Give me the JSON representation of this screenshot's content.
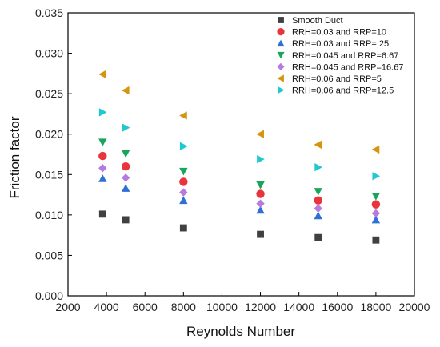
{
  "chart_data": {
    "type": "scatter",
    "title": "",
    "xlabel": "Reynolds Number",
    "ylabel": "Friction factor",
    "xlim": [
      2000,
      20000
    ],
    "ylim": [
      0.0,
      0.035
    ],
    "x_ticks": [
      "2000",
      "4000",
      "6000",
      "8000",
      "10000",
      "12000",
      "14000",
      "16000",
      "18000",
      "20000"
    ],
    "y_ticks": [
      "0.000",
      "0.005",
      "0.010",
      "0.015",
      "0.020",
      "0.025",
      "0.030",
      "0.035"
    ],
    "grid": false,
    "legend_position": "top-right",
    "x": [
      3800,
      5000,
      8000,
      12000,
      15000,
      18000
    ],
    "series": [
      {
        "name": "Smooth Duct",
        "marker": "square",
        "color": "#404040",
        "values": [
          0.0101,
          0.0094,
          0.0084,
          0.0076,
          0.0072,
          0.0069
        ]
      },
      {
        "name": "RRH=0.03 and RRP=10",
        "marker": "circle",
        "color": "#e8343a",
        "values": [
          0.0173,
          0.016,
          0.0141,
          0.0126,
          0.0118,
          0.0113
        ]
      },
      {
        "name": "RRH=0.03 and RRP= 25",
        "marker": "triangle-up",
        "color": "#2f6fd6",
        "values": [
          0.0145,
          0.0133,
          0.0118,
          0.0106,
          0.0099,
          0.0094
        ]
      },
      {
        "name": "RRH=0.045 and RRP=6.67",
        "marker": "triangle-down",
        "color": "#1aa65a",
        "values": [
          0.019,
          0.0176,
          0.0154,
          0.0137,
          0.0129,
          0.0123
        ]
      },
      {
        "name": "RRH=0.045 and RRP=16.67",
        "marker": "diamond",
        "color": "#b77be0",
        "values": [
          0.0158,
          0.0146,
          0.0128,
          0.0114,
          0.0108,
          0.0102
        ]
      },
      {
        "name": "RRH=0.06 and RRP=5",
        "marker": "triangle-left",
        "color": "#d4960e",
        "values": [
          0.0274,
          0.0254,
          0.0223,
          0.02,
          0.0187,
          0.0181
        ]
      },
      {
        "name": "RRH=0.06 and RRP=12.5",
        "marker": "triangle-right",
        "color": "#1fc9cf",
        "values": [
          0.0227,
          0.0208,
          0.0185,
          0.0169,
          0.0159,
          0.0148
        ]
      }
    ]
  }
}
